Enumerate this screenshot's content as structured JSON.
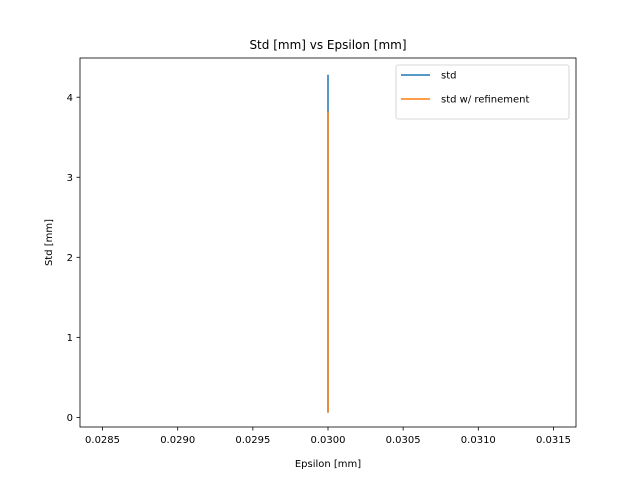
{
  "chart_data": {
    "type": "line",
    "title": "Std [mm] vs Epsilon [mm]",
    "xlabel": "Epsilon [mm]",
    "ylabel": "Std [mm]",
    "xlim": [
      0.02835,
      0.03165
    ],
    "ylim": [
      -0.12,
      4.49
    ],
    "xticks": [
      {
        "value": 0.0285,
        "label": "0.0285"
      },
      {
        "value": 0.029,
        "label": "0.0290"
      },
      {
        "value": 0.0295,
        "label": "0.0295"
      },
      {
        "value": 0.03,
        "label": "0.0300"
      },
      {
        "value": 0.0305,
        "label": "0.0305"
      },
      {
        "value": 0.031,
        "label": "0.0310"
      },
      {
        "value": 0.0315,
        "label": "0.0315"
      }
    ],
    "yticks": [
      {
        "value": 0,
        "label": "0"
      },
      {
        "value": 1,
        "label": "1"
      },
      {
        "value": 2,
        "label": "2"
      },
      {
        "value": 3,
        "label": "3"
      },
      {
        "value": 4,
        "label": "4"
      }
    ],
    "series": [
      {
        "name": "std",
        "color": "#1f77b4",
        "x": [
          0.03,
          0.03
        ],
        "y": [
          0.06,
          4.28
        ]
      },
      {
        "name": "std w/ refinement",
        "color": "#ff7f0e",
        "x": [
          0.03,
          0.03
        ],
        "y": [
          0.06,
          3.82
        ]
      }
    ],
    "legend_position": "top-right",
    "grid": false
  }
}
